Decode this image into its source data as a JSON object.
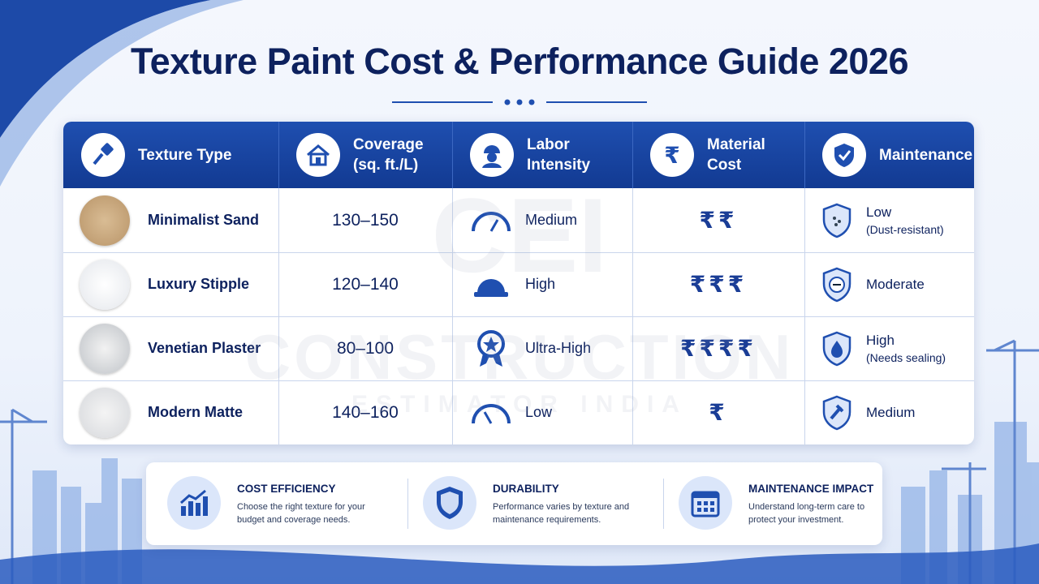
{
  "header": {
    "title": "Texture Paint Cost & Performance Guide 2026"
  },
  "watermark": {
    "mark": "CEI",
    "line1": "CONSTRUCTION",
    "line2": "ESTIMATOR INDIA"
  },
  "table": {
    "columns": [
      "Texture Type",
      "Coverage (sq. ft./L)",
      "Labor Intensity",
      "Material Cost",
      "Maintenance"
    ],
    "rows": [
      {
        "texture": "Minimalist Sand",
        "coverage": "130–150",
        "labor": "Medium",
        "cost": "₹₹",
        "maintenance": "Low",
        "maintenance_note": "(Dust-resistant)"
      },
      {
        "texture": "Luxury Stipple",
        "coverage": "120–140",
        "labor": "High",
        "cost": "₹₹₹",
        "maintenance": "Moderate"
      },
      {
        "texture": "Venetian Plaster",
        "coverage": "80–100",
        "labor": "Ultra-High",
        "cost": "₹₹₹₹",
        "maintenance": "High",
        "maintenance_note": "(Needs sealing)"
      },
      {
        "texture": "Modern Matte",
        "coverage": "140–160",
        "labor": "Low",
        "cost": "₹",
        "maintenance": "Medium"
      }
    ]
  },
  "highlights": [
    {
      "title": "COST EFFICIENCY",
      "text": "Choose the right texture for your budget and coverage needs."
    },
    {
      "title": "DURABILITY",
      "text": "Performance varies by texture and maintenance requirements."
    },
    {
      "title": "MAINTENANCE IMPACT",
      "text": "Understand long-term care to protect your investment."
    }
  ]
}
